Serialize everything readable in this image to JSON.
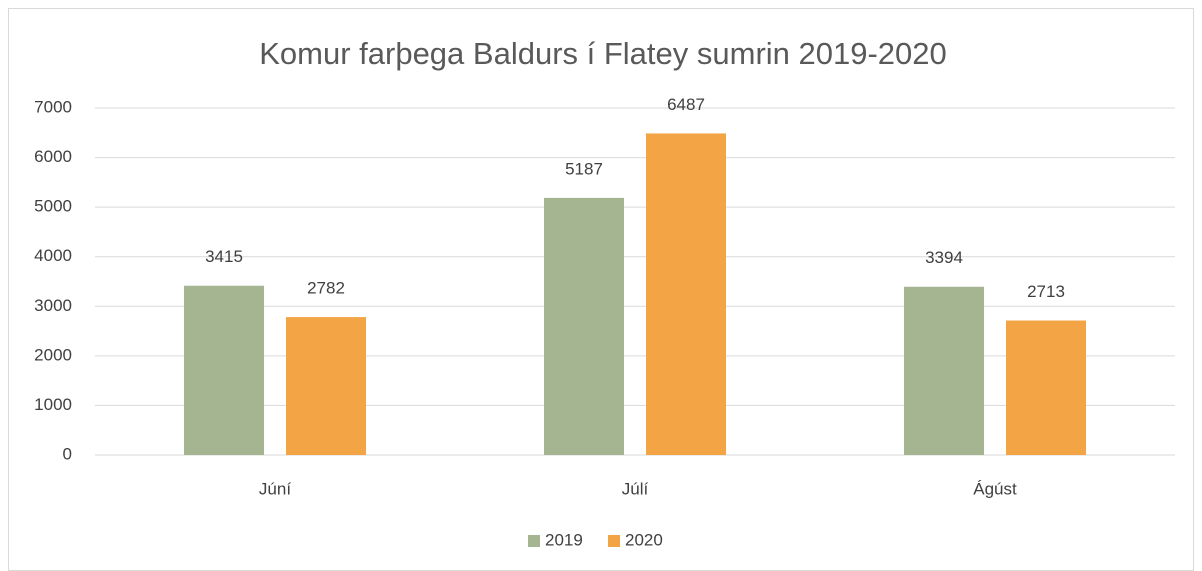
{
  "chart_data": {
    "type": "bar",
    "title": "Komur farþega Baldurs í Flatey sumrin 2019-2020",
    "categories": [
      "Júní",
      "Júlí",
      "Ágúst"
    ],
    "series": [
      {
        "name": "2019",
        "color": "#a5b592",
        "values": [
          3415,
          5187,
          3394
        ]
      },
      {
        "name": "2020",
        "color": "#f3a546",
        "values": [
          2782,
          6487,
          2713
        ]
      }
    ],
    "ylim": [
      0,
      7000
    ],
    "yticks": [
      0,
      1000,
      2000,
      3000,
      4000,
      5000,
      6000,
      7000
    ],
    "grid": true,
    "legend": "bottom"
  }
}
